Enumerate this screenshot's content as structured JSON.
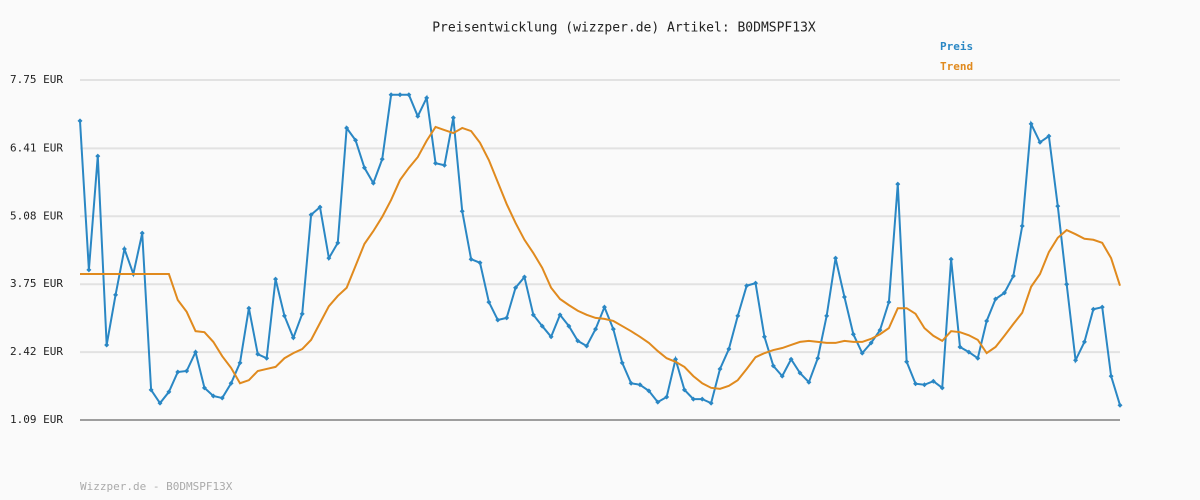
{
  "chart_data": {
    "type": "line",
    "title": "Preisentwicklung (wizzper.de) Artikel: B0DMSPF13X",
    "ylim": [
      1.09,
      7.75
    ],
    "yticks": [
      {
        "value": 1.09,
        "label": "1.09 EUR"
      },
      {
        "value": 2.42,
        "label": "2.42 EUR"
      },
      {
        "value": 3.75,
        "label": "3.75 EUR"
      },
      {
        "value": 5.08,
        "label": "5.08 EUR"
      },
      {
        "value": 6.41,
        "label": "6.41 EUR"
      },
      {
        "value": 7.75,
        "label": "7.75 EUR"
      }
    ],
    "grid": true,
    "legend": "top-right",
    "series": [
      {
        "name": "Preis",
        "color": "#2a87c4",
        "markers": true,
        "values": [
          6.95,
          4.03,
          6.26,
          2.56,
          3.54,
          4.44,
          3.95,
          4.75,
          1.68,
          1.42,
          1.64,
          2.03,
          2.05,
          2.42,
          1.72,
          1.56,
          1.52,
          1.81,
          2.21,
          3.28,
          2.38,
          2.3,
          3.85,
          3.13,
          2.7,
          3.17,
          5.11,
          5.26,
          4.26,
          4.56,
          6.81,
          6.57,
          6.03,
          5.73,
          6.2,
          7.46,
          7.46,
          7.46,
          7.04,
          7.4,
          6.12,
          6.08,
          7.01,
          5.18,
          4.24,
          4.17,
          3.4,
          3.05,
          3.09,
          3.68,
          3.89,
          3.15,
          2.93,
          2.72,
          3.15,
          2.93,
          2.64,
          2.54,
          2.87,
          3.3,
          2.87,
          2.21,
          1.81,
          1.78,
          1.66,
          1.44,
          1.54,
          2.28,
          1.68,
          1.5,
          1.5,
          1.42,
          2.09,
          2.48,
          3.13,
          3.72,
          3.77,
          2.72,
          2.15,
          1.95,
          2.28,
          2.01,
          1.83,
          2.3,
          3.13,
          4.26,
          3.5,
          2.77,
          2.4,
          2.6,
          2.85,
          3.4,
          5.71,
          2.23,
          1.8,
          1.78,
          1.85,
          1.72,
          4.24,
          2.52,
          2.42,
          2.3,
          3.03,
          3.46,
          3.58,
          3.91,
          4.89,
          6.89,
          6.53,
          6.65,
          5.28,
          3.75,
          2.26,
          2.62,
          3.26,
          3.3,
          1.95,
          1.38
        ]
      },
      {
        "name": "Trend",
        "color": "#e08a1e",
        "markers": false,
        "values": [
          3.95,
          3.95,
          3.95,
          3.95,
          3.95,
          3.95,
          3.95,
          3.95,
          3.95,
          3.95,
          3.95,
          3.44,
          3.21,
          2.83,
          2.81,
          2.62,
          2.34,
          2.11,
          1.81,
          1.87,
          2.05,
          2.09,
          2.13,
          2.3,
          2.4,
          2.48,
          2.66,
          2.99,
          3.32,
          3.52,
          3.68,
          4.11,
          4.54,
          4.79,
          5.07,
          5.4,
          5.79,
          6.03,
          6.24,
          6.56,
          6.83,
          6.77,
          6.71,
          6.81,
          6.75,
          6.52,
          6.18,
          5.75,
          5.32,
          4.95,
          4.62,
          4.36,
          4.07,
          3.68,
          3.46,
          3.34,
          3.23,
          3.15,
          3.09,
          3.07,
          3.03,
          2.93,
          2.83,
          2.72,
          2.6,
          2.44,
          2.3,
          2.23,
          2.13,
          1.95,
          1.81,
          1.72,
          1.7,
          1.76,
          1.87,
          2.09,
          2.32,
          2.4,
          2.46,
          2.5,
          2.56,
          2.62,
          2.64,
          2.62,
          2.6,
          2.6,
          2.64,
          2.62,
          2.62,
          2.68,
          2.77,
          2.89,
          3.28,
          3.28,
          3.17,
          2.89,
          2.74,
          2.64,
          2.83,
          2.81,
          2.75,
          2.66,
          2.4,
          2.52,
          2.74,
          2.97,
          3.19,
          3.7,
          3.95,
          4.38,
          4.66,
          4.81,
          4.73,
          4.64,
          4.62,
          4.56,
          4.26,
          3.72
        ]
      }
    ]
  },
  "footer": "Wizzper.de - B0DMSPF13X"
}
